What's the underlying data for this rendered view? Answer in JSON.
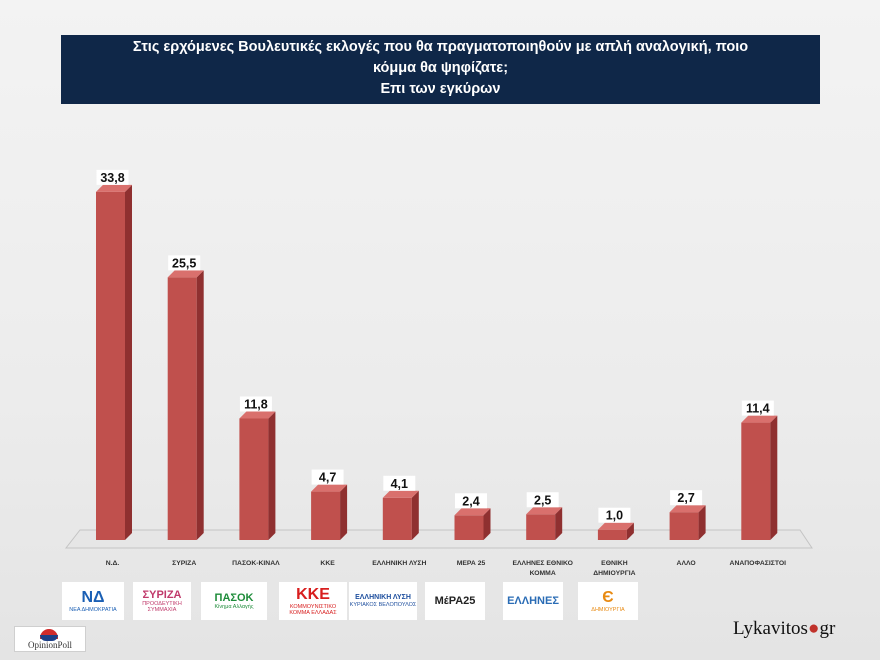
{
  "title": {
    "line1": "Στις ερχόμενες Βουλευτικές εκλογές που θα πραγματοποιηθούν με απλή αναλογική, ποιο",
    "line2": "κόμμα θα ψηφίζατε;",
    "line3": "Επι των εγκύρων"
  },
  "chart_data": {
    "type": "bar",
    "title": "Στις ερχόμενες Βουλευτικές εκλογές που θα πραγματοποιηθούν με απλή αναλογική, ποιο κόμμα θα ψηφίζατε; Επι των εγκύρων",
    "categories": [
      "Ν.Δ.",
      "ΣΥΡΙΖΑ",
      "ΠΑΣΟΚ-ΚΙΝΑΛ",
      "ΚΚΕ",
      "ΕΛΛΗΝΙΚΗ ΛΥΣΗ",
      "ΜΕΡΑ 25",
      "ΕΛΛΗΝΕΣ ΕΘΝΙΚΟ ΚΟΜΜΑ",
      "ΕΘΝΙΚΗ ΔΗΜΙΟΥΡΓΙΑ",
      "ΑΛΛΟ",
      "ΑΝΑΠΟΦΑΣΙΣΤΟΙ"
    ],
    "category_lines": [
      [
        "Ν.Δ."
      ],
      [
        "ΣΥΡΙΖΑ"
      ],
      [
        "ΠΑΣΟΚ-ΚΙΝΑΛ"
      ],
      [
        "ΚΚΕ"
      ],
      [
        "ΕΛΛΗΝΙΚΗ ΛΥΣΗ"
      ],
      [
        "ΜΕΡΑ 25"
      ],
      [
        "ΕΛΛΗΝΕΣ ΕΘΝΙΚΟ",
        "ΚΟΜΜΑ"
      ],
      [
        "ΕΘΝΙΚΗ",
        "ΔΗΜΙΟΥΡΓΙΑ"
      ],
      [
        "ΑΛΛΟ"
      ],
      [
        "ΑΝΑΠΟΦΑΣΙΣΤΟΙ"
      ]
    ],
    "values": [
      33.8,
      25.5,
      11.8,
      4.7,
      4.1,
      2.4,
      2.5,
      1.0,
      2.7,
      11.4
    ],
    "value_labels": [
      "33,8",
      "25,5",
      "11,8",
      "4,7",
      "4,1",
      "2,4",
      "2,5",
      "1,0",
      "2,7",
      "11,4"
    ],
    "xlabel": "",
    "ylabel": "",
    "ylim": [
      0,
      35
    ],
    "grid": false,
    "bar_color": "#c0504d",
    "bar_side_color": "#8f3030",
    "bar_top_color": "#d9706d"
  },
  "logos": [
    {
      "name": "nd-logo",
      "icon": "ΝΔ",
      "text": "ΝΕΑ ΔΗΜΟΚΡΑΤΙΑ",
      "color": "#1a5fb4"
    },
    {
      "name": "syriza-logo",
      "icon": "ΣΥΡΙΖΑ",
      "text": "ΠΡΟΟΔΕΥΤΙΚΗ ΣΥΜΜΑΧΙΑ",
      "color": "#c03a6b"
    },
    {
      "name": "pasok-logo",
      "icon": "ΠΑΣΟΚ",
      "text": "Κίνημα Αλλαγής",
      "color": "#1e8c3a"
    },
    {
      "name": "kke-logo",
      "icon": "ΚΚΕ",
      "text": "ΚΟΜΜΟΥΝΙΣΤΙΚΟ ΚΟΜΜΑ ΕΛΛΑΔΑΣ",
      "color": "#d81e1e"
    },
    {
      "name": "elliniki-lysi-logo",
      "icon": "ΕΛΛΗΝΙΚΗ ΛΥΣΗ",
      "text": "ΚΥΡΙΑΚΟΣ ΒΕΛΟΠΟΥΛΟΣ",
      "color": "#1e4f9e"
    },
    {
      "name": "mera25-logo",
      "icon": "ΜέΡΑ25",
      "text": "",
      "color": "#222222"
    },
    {
      "name": "ellines-logo",
      "icon": "ΕΛΛΗΝΕΣ",
      "text": "",
      "color": "#2a6cb5"
    },
    {
      "name": "dimiourgia-logo",
      "icon": "Є",
      "text": "ΔΗΜΙΟΥΡΓΙΑ",
      "color": "#e88a12"
    }
  ],
  "footer": {
    "pollster": "OpinionPoll",
    "brand_main": "Lykavitos",
    "brand_dot": "●",
    "brand_tld": "gr"
  }
}
